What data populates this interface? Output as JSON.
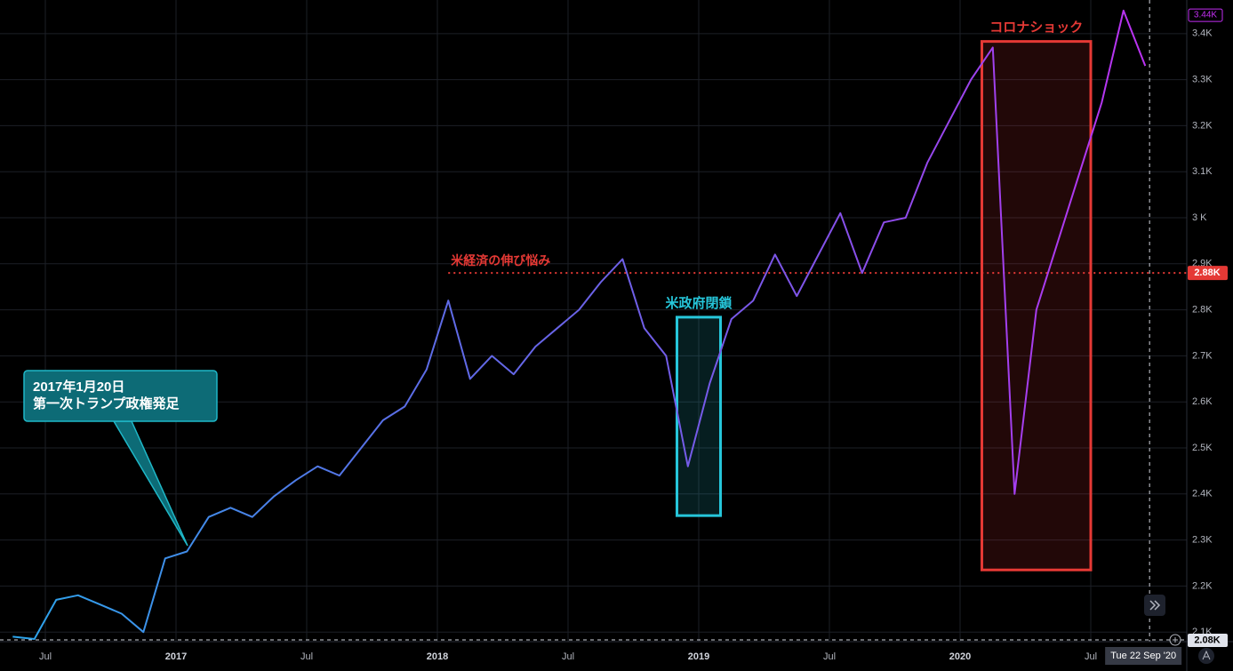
{
  "chart_data": {
    "type": "line",
    "x": [
      "2016-05",
      "2016-06",
      "2016-07",
      "2016-08",
      "2016-09",
      "2016-10",
      "2016-11",
      "2016-12",
      "2017-01",
      "2017-02",
      "2017-03",
      "2017-04",
      "2017-05",
      "2017-06",
      "2017-07",
      "2017-08",
      "2017-09",
      "2017-10",
      "2017-11",
      "2017-12",
      "2018-01",
      "2018-02",
      "2018-03",
      "2018-04",
      "2018-05",
      "2018-06",
      "2018-07",
      "2018-08",
      "2018-09",
      "2018-10",
      "2018-11",
      "2018-12",
      "2019-01",
      "2019-02",
      "2019-03",
      "2019-04",
      "2019-05",
      "2019-06",
      "2019-07",
      "2019-08",
      "2019-09",
      "2019-10",
      "2019-11",
      "2019-12",
      "2020-01",
      "2020-02",
      "2020-03",
      "2020-04",
      "2020-05",
      "2020-06",
      "2020-07",
      "2020-08",
      "2020-09"
    ],
    "values": [
      2090,
      2085,
      2170,
      2180,
      2160,
      2140,
      2100,
      2260,
      2275,
      2350,
      2370,
      2350,
      2395,
      2430,
      2460,
      2440,
      2500,
      2560,
      2590,
      2670,
      2820,
      2650,
      2700,
      2660,
      2720,
      2760,
      2800,
      2860,
      2910,
      2760,
      2700,
      2460,
      2640,
      2780,
      2820,
      2920,
      2830,
      2920,
      3010,
      2880,
      2990,
      3000,
      3120,
      3210,
      3300,
      3370,
      2400,
      2800,
      2950,
      3100,
      3250,
      3450,
      3330
    ],
    "colors": [
      "#2aa7eb",
      "#5a6ee6",
      "#7d55e8",
      "#c22ef2"
    ],
    "ylim": [
      2083,
      3473
    ],
    "yticks": [
      {
        "value": 2100,
        "label": "2.1K"
      },
      {
        "value": 2200,
        "label": "2.2K"
      },
      {
        "value": 2300,
        "label": "2.3K"
      },
      {
        "value": 2400,
        "label": "2.4K"
      },
      {
        "value": 2500,
        "label": "2.5K"
      },
      {
        "value": 2600,
        "label": "2.6K"
      },
      {
        "value": 2700,
        "label": "2.7K"
      },
      {
        "value": 2800,
        "label": "2.8K"
      },
      {
        "value": 2900,
        "label": "2.9K"
      },
      {
        "value": 3000,
        "label": "3 K"
      },
      {
        "value": 3100,
        "label": "3.1K"
      },
      {
        "value": 3200,
        "label": "3.2K"
      },
      {
        "value": 3300,
        "label": "3.3K"
      },
      {
        "value": 3400,
        "label": "3.4K"
      }
    ],
    "xticks": [
      {
        "value": "2016-07",
        "label": "Jul"
      },
      {
        "value": "2017-01",
        "label": "2017"
      },
      {
        "value": "2017-07",
        "label": "Jul"
      },
      {
        "value": "2018-01",
        "label": "2018"
      },
      {
        "value": "2018-07",
        "label": "Jul"
      },
      {
        "value": "2019-01",
        "label": "2019"
      },
      {
        "value": "2019-07",
        "label": "Jul"
      },
      {
        "value": "2020-01",
        "label": "2020"
      },
      {
        "value": "2020-07",
        "label": "Jul"
      }
    ],
    "grid": true,
    "last": {
      "value": 3440,
      "label": "3.44K"
    },
    "crosshair": {
      "date": "Tue 22 Sep '20",
      "price": {
        "value": 2083,
        "label": "2.08K"
      }
    },
    "callout": {
      "lines": [
        "2017年1月20日",
        "第一次トランプ政権発足"
      ]
    },
    "level": {
      "text": "米経済の伸び悩み",
      "color": "#e53935",
      "from": "2018-01",
      "price": {
        "value": 2880,
        "label": "2.88K"
      }
    },
    "boxes": [
      {
        "text": "米政府閉鎖",
        "color": "#26c6da",
        "from": "2018-12",
        "to": "2019-01",
        "ylim": [
          2353,
          2784
        ]
      },
      {
        "text": "コロナショック",
        "color": "#e53935",
        "from": "2020-02",
        "to": "2020-06",
        "ylim": [
          2235,
          3383
        ]
      }
    ]
  }
}
